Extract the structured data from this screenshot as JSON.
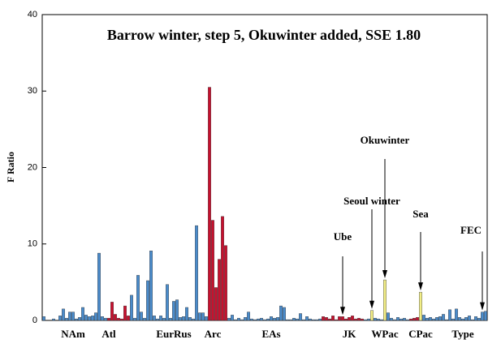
{
  "chart_data": {
    "type": "bar",
    "title": "Barrow winter, step 5, Okuwinter added, SSE 1.80",
    "y_label": "F Ratio",
    "ylim": [
      0,
      40
    ],
    "yticks": [
      0,
      10,
      20,
      30,
      40
    ],
    "annotations": [
      "Ube",
      "Seoul winter",
      "Okuwinter",
      "Sea",
      "FEC"
    ],
    "categories": [
      null,
      null,
      null,
      null,
      null,
      null,
      null,
      null,
      null,
      "NAm",
      null,
      null,
      null,
      null,
      null,
      null,
      null,
      null,
      null,
      null,
      "Atl",
      null,
      null,
      null,
      null,
      null,
      null,
      null,
      null,
      null,
      null,
      null,
      null,
      null,
      null,
      null,
      null,
      null,
      null,
      null,
      "EurRus",
      null,
      null,
      null,
      null,
      null,
      null,
      null,
      null,
      null,
      null,
      null,
      "Arc",
      null,
      null,
      null,
      null,
      null,
      null,
      null,
      null,
      null,
      null,
      null,
      null,
      null,
      null,
      null,
      null,
      null,
      "EAs",
      null,
      null,
      null,
      null,
      null,
      null,
      null,
      null,
      null,
      null,
      null,
      null,
      null,
      null,
      null,
      null,
      null,
      null,
      null,
      null,
      null,
      null,
      null,
      "JK",
      null,
      null,
      null,
      null,
      null,
      null,
      null,
      null,
      null,
      null,
      "WPac",
      null,
      null,
      null,
      null,
      null,
      null,
      null,
      null,
      null,
      null,
      "CPac",
      null,
      null,
      null,
      null,
      null,
      null,
      null,
      null,
      null,
      null,
      null,
      null,
      "Type",
      null,
      null,
      null,
      null,
      null,
      null,
      null
    ],
    "values": [
      0.5,
      0,
      0,
      0.2,
      0,
      0.6,
      1.5,
      0.3,
      1.1,
      1.1,
      0.2,
      0.4,
      1.7,
      0.7,
      0.5,
      0.6,
      1.0,
      8.8,
      0.5,
      0.3,
      0.3,
      2.4,
      0.8,
      0.3,
      0.2,
      1.9,
      0.6,
      3.3,
      0.3,
      5.9,
      1.1,
      0.3,
      5.2,
      9.1,
      0.6,
      0.2,
      0.6,
      0.3,
      4.7,
      0.3,
      2.5,
      2.7,
      0.4,
      0.5,
      1.7,
      0.4,
      0.2,
      12.4,
      1.0,
      1.0,
      0.5,
      30.5,
      13.1,
      4.3,
      8.0,
      13.6,
      9.8,
      0.3,
      0.7,
      0.1,
      0.3,
      0.1,
      0.4,
      1.1,
      0.2,
      0.1,
      0.2,
      0.3,
      0.1,
      0.2,
      0.5,
      0.3,
      0.4,
      1.9,
      1.7,
      0.1,
      0.1,
      0.3,
      0.2,
      0.9,
      0.1,
      0.5,
      0.2,
      0.1,
      0.1,
      0.2,
      0.5,
      0.4,
      0.2,
      0.6,
      0.1,
      0.5,
      0.5,
      0.2,
      0.4,
      0.6,
      0.2,
      0.3,
      0.2,
      0.1,
      0.2,
      1.3,
      0.3,
      0.2,
      0.1,
      5.3,
      1.0,
      0.3,
      0.1,
      0.4,
      0.2,
      0.3,
      0.1,
      0.2,
      0.3,
      0.4,
      3.7,
      0.7,
      0.3,
      0.4,
      0.2,
      0.4,
      0.5,
      0.8,
      0.1,
      1.4,
      0.2,
      1.5,
      0.4,
      0.2,
      0.4,
      0.6,
      0.1,
      0.5,
      0.3,
      1.1,
      1.2
    ],
    "colors": [
      "#4a8ccc",
      "#4a8ccc",
      "#4a8ccc",
      "#4a8ccc",
      "#4a8ccc",
      "#4a8ccc",
      "#4a8ccc",
      "#4a8ccc",
      "#4a8ccc",
      "#4a8ccc",
      "#4a8ccc",
      "#4a8ccc",
      "#4a8ccc",
      "#4a8ccc",
      "#4a8ccc",
      "#4a8ccc",
      "#4a8ccc",
      "#4a8ccc",
      "#4a8ccc",
      "#4a8ccc",
      "#c8102e",
      "#c8102e",
      "#c8102e",
      "#c8102e",
      "#c8102e",
      "#c8102e",
      "#c8102e",
      "#4a8ccc",
      "#4a8ccc",
      "#4a8ccc",
      "#4a8ccc",
      "#4a8ccc",
      "#4a8ccc",
      "#4a8ccc",
      "#4a8ccc",
      "#4a8ccc",
      "#4a8ccc",
      "#4a8ccc",
      "#4a8ccc",
      "#4a8ccc",
      "#4a8ccc",
      "#4a8ccc",
      "#4a8ccc",
      "#4a8ccc",
      "#4a8ccc",
      "#4a8ccc",
      "#4a8ccc",
      "#4a8ccc",
      "#4a8ccc",
      "#4a8ccc",
      "#4a8ccc",
      "#c8102e",
      "#c8102e",
      "#c8102e",
      "#c8102e",
      "#c8102e",
      "#c8102e",
      "#4a8ccc",
      "#4a8ccc",
      "#4a8ccc",
      "#4a8ccc",
      "#4a8ccc",
      "#4a8ccc",
      "#4a8ccc",
      "#4a8ccc",
      "#4a8ccc",
      "#4a8ccc",
      "#4a8ccc",
      "#4a8ccc",
      "#4a8ccc",
      "#4a8ccc",
      "#4a8ccc",
      "#4a8ccc",
      "#4a8ccc",
      "#4a8ccc",
      "#4a8ccc",
      "#4a8ccc",
      "#4a8ccc",
      "#4a8ccc",
      "#4a8ccc",
      "#4a8ccc",
      "#4a8ccc",
      "#4a8ccc",
      "#4a8ccc",
      "#4a8ccc",
      "#4a8ccc",
      "#c8102e",
      "#c8102e",
      "#c8102e",
      "#c8102e",
      "#c8102e",
      "#c8102e",
      "#c8102e",
      "#c8102e",
      "#c8102e",
      "#c8102e",
      "#c8102e",
      "#c8102e",
      "#c8102e",
      "#4a8ccc",
      "#4a8ccc",
      "#f2ee86",
      "#4a8ccc",
      "#4a8ccc",
      "#4a8ccc",
      "#f2ee86",
      "#4a8ccc",
      "#4a8ccc",
      "#4a8ccc",
      "#4a8ccc",
      "#4a8ccc",
      "#4a8ccc",
      "#4a8ccc",
      "#c8102e",
      "#c8102e",
      "#c8102e",
      "#f2ee86",
      "#4a8ccc",
      "#4a8ccc",
      "#4a8ccc",
      "#4a8ccc",
      "#4a8ccc",
      "#4a8ccc",
      "#4a8ccc",
      "#4a8ccc",
      "#4a8ccc",
      "#4a8ccc",
      "#4a8ccc",
      "#4a8ccc",
      "#4a8ccc",
      "#4a8ccc",
      "#4a8ccc",
      "#4a8ccc",
      "#4a8ccc",
      "#4a8ccc",
      "#4a8ccc",
      "#4a8ccc"
    ]
  }
}
